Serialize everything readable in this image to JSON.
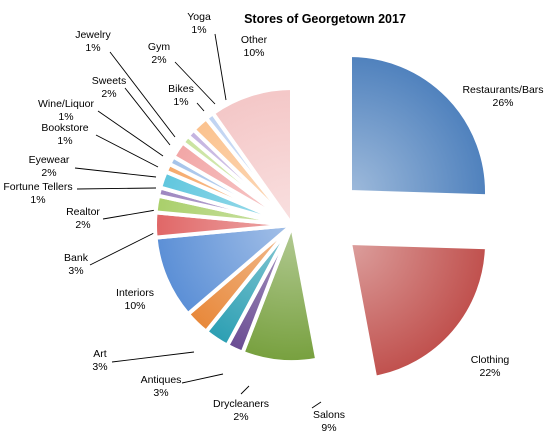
{
  "chart_data": {
    "type": "pie",
    "title": "Stores of Georgetown 2017",
    "slices": [
      {
        "label": "Restaurants/Bars",
        "value": 26,
        "pct_label": "26%",
        "color": "#4f81bd"
      },
      {
        "label": "Clothing",
        "value": 22,
        "pct_label": "22%",
        "color": "#c0504d"
      },
      {
        "label": "Salons",
        "value": 9,
        "pct_label": "9%",
        "color": "#77a03e"
      },
      {
        "label": "Drycleaners",
        "value": 2,
        "pct_label": "2%",
        "color": "#6a4c93"
      },
      {
        "label": "Antiques",
        "value": 3,
        "pct_label": "3%",
        "color": "#2c9fb3"
      },
      {
        "label": "Art",
        "value": 3,
        "pct_label": "3%",
        "color": "#e8883a"
      },
      {
        "label": "Interiors",
        "value": 10,
        "pct_label": "10%",
        "color": "#5b8fd6"
      },
      {
        "label": "Bank",
        "value": 3,
        "pct_label": "3%",
        "color": "#e06666"
      },
      {
        "label": "Realtor",
        "value": 2,
        "pct_label": "2%",
        "color": "#a9cf6a"
      },
      {
        "label": "Fortune Tellers",
        "value": 1,
        "pct_label": "1%",
        "color": "#9d86c0"
      },
      {
        "label": "Eyewear",
        "value": 2,
        "pct_label": "2%",
        "color": "#5fc6de"
      },
      {
        "label": "Bookstore",
        "value": 1,
        "pct_label": "1%",
        "color": "#f6a96b"
      },
      {
        "label": "Wine/Liquor",
        "value": 1,
        "pct_label": "1%",
        "color": "#a5c3ea"
      },
      {
        "label": "Sweets",
        "value": 2,
        "pct_label": "2%",
        "color": "#f2a6a6"
      },
      {
        "label": "Jewelry",
        "value": 1,
        "pct_label": "1%",
        "color": "#c9e39f"
      },
      {
        "label": "Bikes",
        "value": 1,
        "pct_label": "1%",
        "color": "#c4b3e0"
      },
      {
        "label": "Gym",
        "value": 2,
        "pct_label": "2%",
        "color": "#fbc28e"
      },
      {
        "label": "Yoga",
        "value": 1,
        "pct_label": "1%",
        "color": "#bfd3f2"
      },
      {
        "label": "Other",
        "value": 10,
        "pct_label": "10%",
        "color": "#f4c7c7"
      }
    ]
  }
}
